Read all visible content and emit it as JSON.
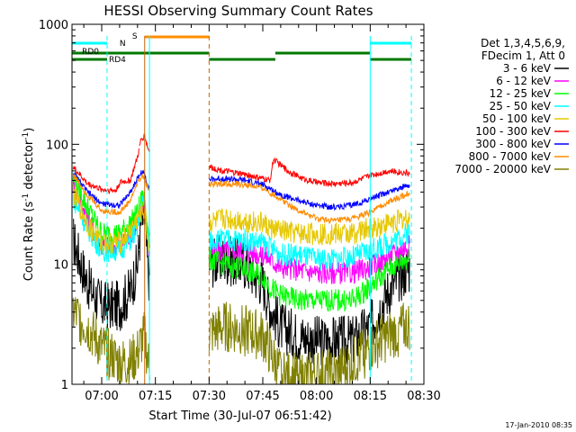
{
  "chart_data": {
    "type": "line",
    "title": "HESSI Observing Summary Count Rates",
    "xlabel": "Start Time (30-Jul-07 06:51:42)",
    "ylabel_main": "Count Rate (s",
    "ylabel_sup1": "-1",
    "ylabel_mid": " detector",
    "ylabel_sup2": "-1",
    "ylabel_end": ")",
    "y_scale": "log",
    "ylim": [
      1,
      1000
    ],
    "xlim": [
      "06:51:42",
      "08:30:00"
    ],
    "x_ticks": [
      "07:00",
      "07:15",
      "07:30",
      "07:45",
      "08:00",
      "08:15",
      "08:30"
    ],
    "y_ticks": [
      "1",
      "10",
      "100",
      "1000"
    ],
    "legend_header": [
      "Det 1,3,4,5,6,9,",
      "FDecim 1, Att 0"
    ],
    "legend_position": "right",
    "timestamp": "17-Jan-2010 08:35",
    "flag_labels": {
      "saa": "S",
      "night": "N",
      "rd0": "RD0",
      "rd4": "RD4"
    },
    "colors": {
      "rd_flag": "#007800",
      "night_flag": "#00ffff",
      "saa_flag": "#ff8c00",
      "flare_marker": "#c86400"
    },
    "segments": [
      [
        "06:51:42",
        "07:10:30"
      ],
      [
        "07:10:30",
        "07:13:30"
      ],
      [
        "07:30:00",
        "08:26:00"
      ]
    ],
    "series": [
      {
        "name": "3 - 6 keV",
        "color": "#000000",
        "x": [
          "06:52",
          "06:56",
          "07:00",
          "07:05",
          "07:08",
          "07:10",
          "07:11",
          "07:12",
          "07:13",
          "07:34",
          "07:40",
          "07:45",
          "07:47",
          "07:50",
          "07:55",
          "08:00",
          "08:05",
          "08:10",
          "08:15",
          "08:20",
          "08:25",
          "08:28"
        ],
        "values": [
          16,
          7,
          4.5,
          4.5,
          6,
          10,
          22,
          25,
          8,
          11,
          10,
          7,
          4.5,
          3,
          2.5,
          2.3,
          2.3,
          2.3,
          3,
          6,
          9,
          10
        ]
      },
      {
        "name": "6 - 12 keV",
        "color": "#ff00ff",
        "x": [
          "06:52",
          "06:56",
          "07:00",
          "07:05",
          "07:08",
          "07:10",
          "07:11",
          "07:12",
          "07:13",
          "07:34",
          "07:40",
          "07:45",
          "07:47",
          "07:50",
          "07:55",
          "08:00",
          "08:05",
          "08:10",
          "08:15",
          "08:20",
          "08:25",
          "08:28"
        ],
        "values": [
          46,
          24,
          14,
          14,
          18,
          23,
          30,
          32,
          14,
          13,
          13,
          12,
          11,
          9.5,
          9,
          8.5,
          8.5,
          8.5,
          9.5,
          11.5,
          14,
          15
        ]
      },
      {
        "name": "12 - 25 keV",
        "color": "#00ff00",
        "x": [
          "06:52",
          "06:56",
          "07:00",
          "07:05",
          "07:08",
          "07:10",
          "07:11",
          "07:12",
          "07:13",
          "07:34",
          "07:40",
          "07:45",
          "07:47",
          "07:50",
          "07:55",
          "08:00",
          "08:05",
          "08:10",
          "08:15",
          "08:20",
          "08:25",
          "08:28"
        ],
        "values": [
          53,
          30,
          18,
          18,
          22,
          27,
          34,
          36,
          18,
          10,
          9,
          8,
          6.5,
          5.5,
          5,
          5,
          5,
          5,
          6.5,
          9,
          11,
          12
        ]
      },
      {
        "name": "25 - 50 keV",
        "color": "#00ffff",
        "x": [
          "06:52",
          "06:56",
          "07:00",
          "07:05",
          "07:08",
          "07:10",
          "07:11",
          "07:12",
          "07:13",
          "07:34",
          "07:40",
          "07:45",
          "07:47",
          "07:50",
          "07:55",
          "08:00",
          "08:05",
          "08:10",
          "08:15",
          "08:20",
          "08:25",
          "08:28"
        ],
        "values": [
          36,
          20,
          13,
          13,
          16,
          20,
          30,
          34,
          16,
          16,
          16,
          15,
          14,
          12,
          12,
          11,
          11,
          11.5,
          13,
          15,
          18,
          19
        ]
      },
      {
        "name": "50 - 100 keV",
        "color": "#e6c800",
        "x": [
          "06:52",
          "06:56",
          "07:00",
          "07:05",
          "07:08",
          "07:10",
          "07:11",
          "07:12",
          "07:13",
          "07:34",
          "07:40",
          "07:45",
          "07:47",
          "07:50",
          "07:55",
          "08:00",
          "08:05",
          "08:10",
          "08:15",
          "08:20",
          "08:25",
          "08:28"
        ],
        "values": [
          40,
          22,
          15,
          15,
          19,
          24,
          27,
          28,
          15,
          24,
          23,
          22,
          20,
          19,
          18,
          18,
          18,
          18,
          20,
          22,
          24,
          25
        ]
      },
      {
        "name": "100 - 300 keV",
        "color": "#ff0000",
        "x": [
          "06:52",
          "06:56",
          "07:00",
          "07:04",
          "07:05",
          "07:08",
          "07:10",
          "07:11",
          "07:12",
          "07:13",
          "07:34",
          "07:40",
          "07:47",
          "07:48",
          "07:52",
          "07:56",
          "08:00",
          "08:05",
          "08:10",
          "08:15",
          "08:20",
          "08:25",
          "08:28"
        ],
        "values": [
          65,
          47,
          42,
          41,
          48,
          50,
          78,
          110,
          118,
          90,
          60,
          56,
          50,
          75,
          60,
          52,
          48,
          47,
          48,
          55,
          60,
          58,
          56
        ]
      },
      {
        "name": "300 - 800 keV",
        "color": "#0000ff",
        "x": [
          "06:52",
          "06:56",
          "07:00",
          "07:05",
          "07:08",
          "07:10",
          "07:11",
          "07:12",
          "07:13",
          "07:34",
          "07:40",
          "07:45",
          "07:50",
          "07:55",
          "08:00",
          "08:05",
          "08:10",
          "08:15",
          "08:20",
          "08:25",
          "08:28"
        ],
        "values": [
          58,
          40,
          32,
          31,
          40,
          52,
          58,
          56,
          45,
          52,
          50,
          46,
          38,
          34,
          31,
          30,
          31,
          35,
          40,
          45,
          47
        ]
      },
      {
        "name": "800 - 7000 keV",
        "color": "#ff8c00",
        "x": [
          "06:52",
          "06:56",
          "07:00",
          "07:05",
          "07:08",
          "07:10",
          "07:11",
          "07:12",
          "07:13",
          "07:34",
          "07:40",
          "07:45",
          "07:50",
          "07:55",
          "08:00",
          "08:05",
          "08:10",
          "08:15",
          "08:20",
          "08:25",
          "08:28"
        ],
        "values": [
          56,
          38,
          28,
          27,
          34,
          48,
          54,
          52,
          42,
          47,
          46,
          43,
          35,
          28,
          24,
          23,
          24,
          27,
          33,
          38,
          42
        ]
      },
      {
        "name": "7000 - 20000 keV",
        "color": "#808000",
        "x": [
          "06:52",
          "06:56",
          "07:00",
          "07:05",
          "07:08",
          "07:10",
          "07:11",
          "07:12",
          "07:13",
          "07:34",
          "07:40",
          "07:45",
          "07:48",
          "07:50",
          "07:55",
          "08:00",
          "08:05",
          "08:10",
          "08:15",
          "08:20",
          "08:25",
          "08:28"
        ],
        "values": [
          4,
          3,
          2,
          1.5,
          1.5,
          1.8,
          2.2,
          2.5,
          1.5,
          3,
          2.8,
          2.5,
          1.6,
          1.2,
          1.1,
          1.2,
          1.2,
          1.5,
          2,
          2.5,
          3,
          3.2
        ]
      }
    ],
    "flags": {
      "saa": [
        [
          "07:12:00",
          "07:30:00"
        ]
      ],
      "night": [
        [
          "06:51:42",
          "07:01:30"
        ],
        [
          "08:15:00",
          "08:26:30"
        ]
      ],
      "rd0": [
        [
          "06:51:42",
          "07:30:00"
        ],
        [
          "07:48:30",
          "08:15:00"
        ]
      ],
      "rd4": [
        [
          "07:30:00",
          "07:48:30"
        ],
        [
          "08:15:00",
          "08:26:30"
        ]
      ],
      "dashed_night": [
        "07:01:30",
        "08:26:30"
      ],
      "saa_boundaries": [
        "07:12:00",
        "07:30:00"
      ]
    }
  }
}
